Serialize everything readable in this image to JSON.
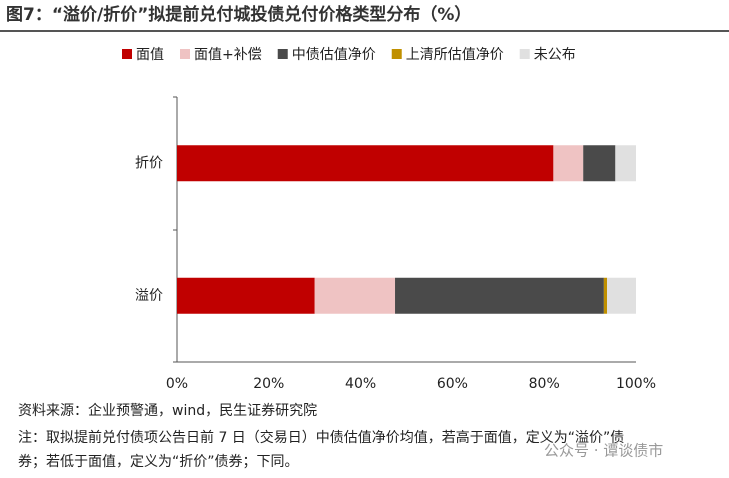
{
  "chart_data": {
    "type": "stacked-barh",
    "title": "图7：“溢价/折价”拟提前兑付城投债兑付价格类型分布（%）",
    "categories": [
      "折价",
      "溢价"
    ],
    "series": [
      {
        "name": "面值",
        "color": "#c00000",
        "values": [
          82,
          30
        ]
      },
      {
        "name": "面值+补偿",
        "color": "#efc3c3",
        "values": [
          6.5,
          17.5
        ]
      },
      {
        "name": "中债估值净价",
        "color": "#4a4a4a",
        "values": [
          7,
          45.5
        ]
      },
      {
        "name": "上清所估值净价",
        "color": "#c09000",
        "values": [
          0,
          0.7
        ]
      },
      {
        "name": "未公布",
        "color": "#e0e0e0",
        "values": [
          4.5,
          6.3
        ]
      }
    ],
    "xlim": [
      0,
      100
    ],
    "xticks": [
      {
        "value": 0,
        "label": "0%"
      },
      {
        "value": 20,
        "label": "20%"
      },
      {
        "value": 40,
        "label": "40%"
      },
      {
        "value": 60,
        "label": "60%"
      },
      {
        "value": 80,
        "label": "80%"
      },
      {
        "value": 100,
        "label": "100%"
      }
    ],
    "legend": "top",
    "source": "资料来源：企业预警通，wind，民生证券研究院",
    "notes": [
      "注：取拟提前兑付债项公告日前 7 日（交易日）中债估值净价均值，若高于面值，定义为“溢价”债",
      "券；若低于面值，定义为“折价”债券；下同。"
    ],
    "watermark": "公众号 · 谭谈债市"
  }
}
